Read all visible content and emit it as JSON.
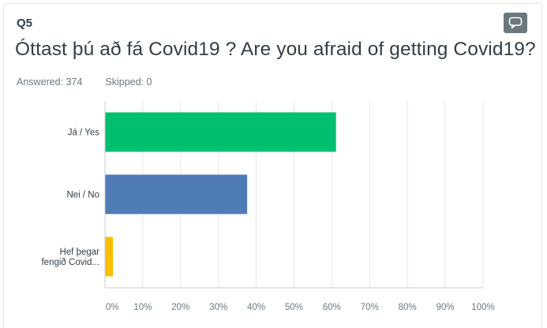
{
  "question": {
    "number": "Q5",
    "title": "Óttast þú að fá Covid19 ? Are you afraid of getting Covid19?",
    "answered_label": "Answered:",
    "answered_value": "374",
    "skipped_label": "Skipped:",
    "skipped_value": "0",
    "comment_icon": "speech-bubble-icon"
  },
  "chart_data": {
    "type": "bar",
    "orientation": "horizontal",
    "categories": [
      [
        "Já / Yes"
      ],
      [
        "Nei / No"
      ],
      [
        "Hef þegar",
        "fengið Covid..."
      ]
    ],
    "values": [
      61,
      37.5,
      2
    ],
    "colors": [
      "#00bf6f",
      "#507cb6",
      "#f9be00"
    ],
    "xlim": [
      0,
      100
    ],
    "xticks": [
      "0%",
      "10%",
      "20%",
      "30%",
      "40%",
      "50%",
      "60%",
      "70%",
      "80%",
      "90%",
      "100%"
    ],
    "grid": true,
    "xlabel": "",
    "ylabel": ""
  }
}
